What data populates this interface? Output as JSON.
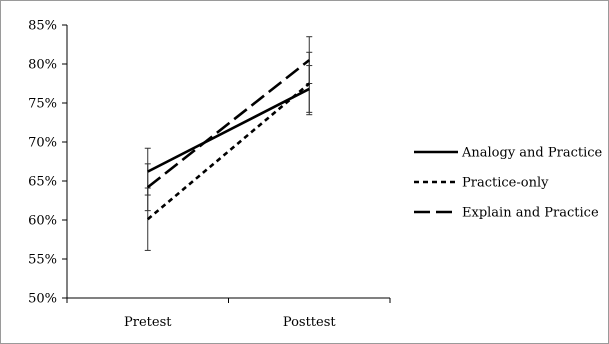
{
  "chart_data": {
    "type": "line",
    "categories": [
      "Pretest",
      "Posttest"
    ],
    "ylim": [
      0.5,
      0.85
    ],
    "yticks": [
      "50%",
      "55%",
      "60%",
      "65%",
      "70%",
      "75%",
      "80%",
      "85%"
    ],
    "ytick_values": [
      0.5,
      0.55,
      0.6,
      0.65,
      0.7,
      0.75,
      0.8,
      0.85
    ],
    "grid": false,
    "legend": "right",
    "series": [
      {
        "name": "Analogy and Practice",
        "values": [
          0.662,
          0.768
        ],
        "error": [
          0.03,
          0.03
        ],
        "dash": "solid",
        "color": "#000000"
      },
      {
        "name": "Practice-only",
        "values": [
          0.601,
          0.775
        ],
        "error": [
          0.04,
          0.04
        ],
        "dash": "short",
        "color": "#000000"
      },
      {
        "name": "Explain and Practice",
        "values": [
          0.642,
          0.805
        ],
        "error": [
          0.03,
          0.03
        ],
        "dash": "long",
        "color": "#000000"
      }
    ]
  }
}
